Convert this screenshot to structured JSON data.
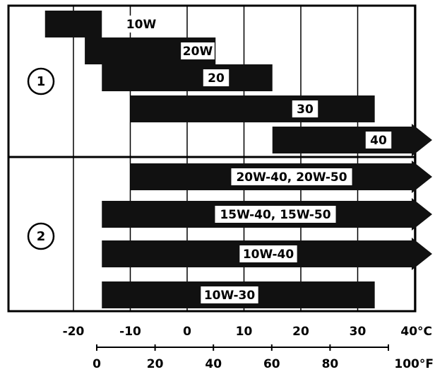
{
  "chart_data": {
    "type": "bar",
    "title": "",
    "xlabel": "",
    "ylabel": "",
    "x_unit": "°C",
    "x_unit_secondary": "°F",
    "xlim": [
      -30,
      45
    ],
    "celsius_ticks": [
      "-20",
      "-10",
      "0",
      "10",
      "20",
      "30",
      "40°C"
    ],
    "celsius_tick_values": [
      -20,
      -10,
      0,
      10,
      20,
      30,
      40
    ],
    "fahrenheit_ticks": [
      "0",
      "20",
      "40",
      "60",
      "80",
      "100°F"
    ],
    "fahrenheit_tick_values": [
      0,
      20,
      40,
      60,
      80,
      100
    ],
    "groups": [
      {
        "label": "1",
        "bars": [
          {
            "label": "10W",
            "from": -25,
            "to": -15,
            "open_end": false
          },
          {
            "label": "20W",
            "from": -18,
            "to": 5,
            "open_end": false
          },
          {
            "label": "20",
            "from": -15,
            "to": 15,
            "open_end": false
          },
          {
            "label": "30",
            "from": -10,
            "to": 33,
            "open_end": false
          },
          {
            "label": "40",
            "from": 15,
            "to": 46,
            "open_end": true
          }
        ]
      },
      {
        "label": "2",
        "bars": [
          {
            "label": "20W-40, 20W-50",
            "from": -10,
            "to": 46,
            "open_end": true
          },
          {
            "label": "15W-40, 15W-50",
            "from": -15,
            "to": 46,
            "open_end": true
          },
          {
            "label": "10W-40",
            "from": -15,
            "to": 46,
            "open_end": true
          },
          {
            "label": "10W-30",
            "from": -15,
            "to": 33,
            "open_end": false
          }
        ]
      }
    ],
    "grid": true
  }
}
